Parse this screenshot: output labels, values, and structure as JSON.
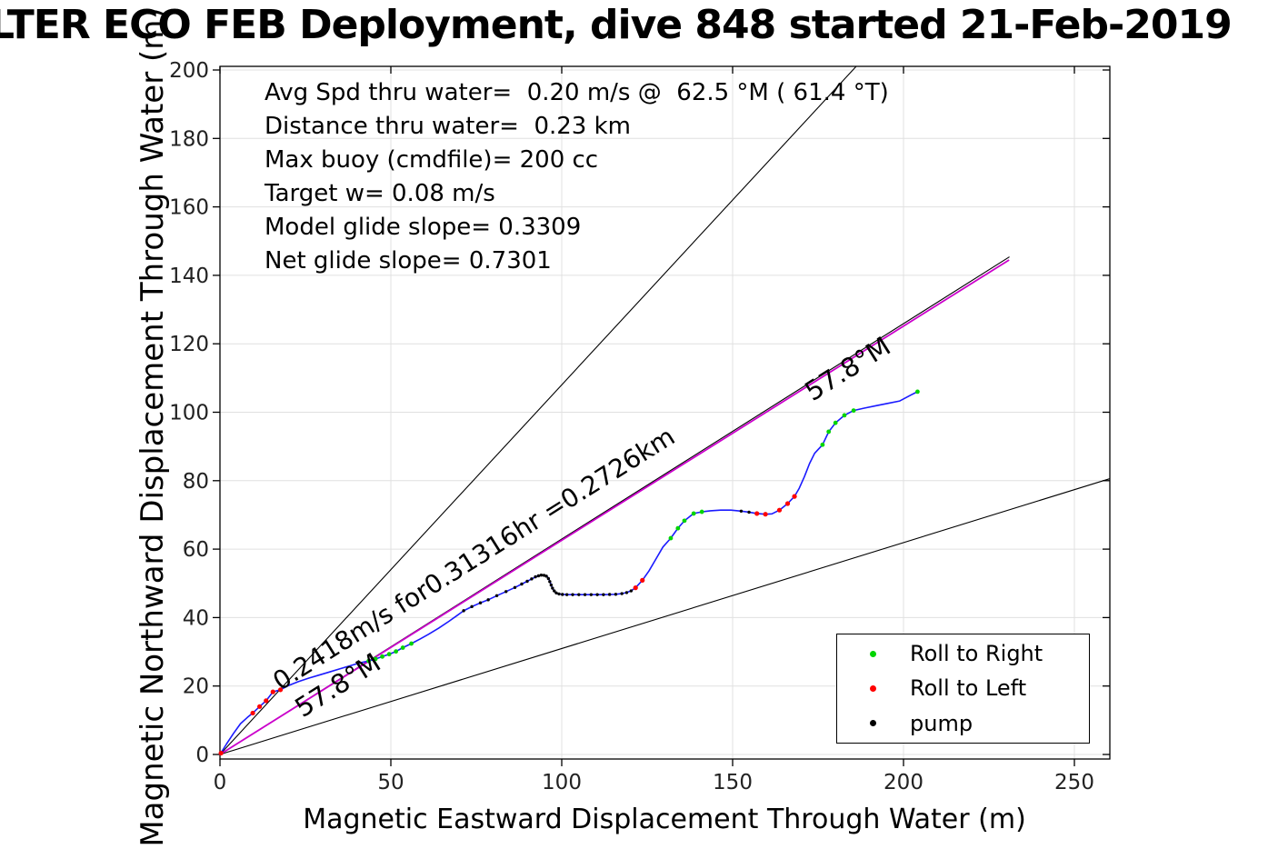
{
  "title": "LTER ECO FEB Deployment, dive 848 started 21-Feb-2019",
  "axes": {
    "xlabel": "Magnetic Eastward Displacement Through Water (m)",
    "ylabel": "Magnetic Northward Displacement Through Water (m)",
    "x_ticks": [
      0,
      50,
      100,
      150,
      200,
      250
    ],
    "y_ticks": [
      0,
      20,
      40,
      60,
      80,
      100,
      120,
      140,
      160,
      180,
      200
    ]
  },
  "stats": [
    "Avg Spd thru water=  0.20 m/s @  62.5 °M ( 61.4 °T)",
    "Distance thru water=  0.23 km",
    "Max buoy (cmdfile)= 200 cc",
    "Target w= 0.08 m/s",
    "Model glide slope= 0.3309",
    "Net glide slope= 0.7301"
  ],
  "annotations": {
    "speed_vector_label": "0.2418m/s for0.31316hr =0.2726km",
    "heading_label_1": "57.8°M",
    "heading_label_2": "57.8°M"
  },
  "legend": {
    "items": [
      {
        "label": "Roll to Right",
        "color": "#00d500"
      },
      {
        "label": "Roll to Left",
        "color": "#ff0000"
      },
      {
        "label": "pump",
        "color": "#000000"
      }
    ]
  },
  "colors": {
    "trajectory": "#1a1aff",
    "mean_vector": "#cc00cc",
    "reference_lines": "#000000",
    "grid": "#e0e0e0",
    "tick_label": "#222222"
  },
  "chart_data": {
    "type": "line",
    "title": "LTER ECO FEB Deployment, dive 848 started 21-Feb-2019",
    "xlabel": "Magnetic Eastward Displacement Through Water (m)",
    "ylabel": "Magnetic Northward Displacement Through Water (m)",
    "xlim": [
      0,
      260
    ],
    "ylim": [
      0,
      201
    ],
    "grid": true,
    "legend_position": "lower right",
    "trajectory": [
      [
        0,
        0
      ],
      [
        2,
        3.2
      ],
      [
        4,
        6.2
      ],
      [
        6,
        9
      ],
      [
        8,
        10.8
      ],
      [
        9.6,
        12.1
      ],
      [
        11.6,
        14
      ],
      [
        13.5,
        15.7
      ],
      [
        15.5,
        18.3
      ],
      [
        17.7,
        18.9
      ],
      [
        20,
        20.1
      ],
      [
        23,
        21.3
      ],
      [
        26,
        22.3
      ],
      [
        29,
        23.2
      ],
      [
        32,
        24.1
      ],
      [
        35,
        25
      ],
      [
        38,
        25.9
      ],
      [
        41,
        26.8
      ],
      [
        43.5,
        27.3
      ],
      [
        45.5,
        27.9
      ],
      [
        47.5,
        28.6
      ],
      [
        49.5,
        29.3
      ],
      [
        51.5,
        30.1
      ],
      [
        53.5,
        31.2
      ],
      [
        56,
        32.4
      ],
      [
        58.5,
        33.7
      ],
      [
        61,
        35.1
      ],
      [
        64,
        36.9
      ],
      [
        67,
        38.9
      ],
      [
        69.5,
        40.7
      ],
      [
        71.3,
        42
      ],
      [
        73.7,
        43.2
      ],
      [
        76.2,
        44.3
      ],
      [
        78.5,
        45.2
      ],
      [
        81,
        46.4
      ],
      [
        83.7,
        47.6
      ],
      [
        86.3,
        48.8
      ],
      [
        88.3,
        49.8
      ],
      [
        89.9,
        50.6
      ],
      [
        91.2,
        51.3
      ],
      [
        92.6,
        52
      ],
      [
        93.6,
        52.3
      ],
      [
        94.4,
        52.4
      ],
      [
        95.2,
        52.3
      ],
      [
        95.8,
        51.9
      ],
      [
        96.3,
        51.1
      ],
      [
        96.7,
        50.1
      ],
      [
        97.1,
        49
      ],
      [
        97.6,
        48
      ],
      [
        98.2,
        47.3
      ],
      [
        99,
        46.9
      ],
      [
        100,
        46.8
      ],
      [
        101.5,
        46.7
      ],
      [
        103.2,
        46.7
      ],
      [
        105,
        46.7
      ],
      [
        106.8,
        46.7
      ],
      [
        108.6,
        46.7
      ],
      [
        110.4,
        46.7
      ],
      [
        112.2,
        46.7
      ],
      [
        114,
        46.75
      ],
      [
        115.8,
        46.8
      ],
      [
        117.6,
        47
      ],
      [
        119,
        47.3
      ],
      [
        120.4,
        47.9
      ],
      [
        121.6,
        48.7
      ],
      [
        123.6,
        50.9
      ],
      [
        125.5,
        53.6
      ],
      [
        127.5,
        57
      ],
      [
        129.6,
        60.6
      ],
      [
        131.9,
        63.2
      ],
      [
        134,
        66.1
      ],
      [
        135.9,
        68.3
      ],
      [
        138.6,
        70.4
      ],
      [
        141,
        70.9
      ],
      [
        143.5,
        71.2
      ],
      [
        146.5,
        71.4
      ],
      [
        149.5,
        71.4
      ],
      [
        152.5,
        71.1
      ],
      [
        154.8,
        70.8
      ],
      [
        157.1,
        70.4
      ],
      [
        159.6,
        70.2
      ],
      [
        161.5,
        70.3
      ],
      [
        163.7,
        71.4
      ],
      [
        166.1,
        73.3
      ],
      [
        168.1,
        75.4
      ],
      [
        169.5,
        77.8
      ],
      [
        171,
        81.2
      ],
      [
        172.5,
        85
      ],
      [
        174,
        88
      ],
      [
        176.3,
        90.5
      ],
      [
        178.1,
        94.3
      ],
      [
        180.1,
        96.9
      ],
      [
        182.7,
        99.1
      ],
      [
        185.4,
        100.5
      ],
      [
        188.5,
        101.2
      ],
      [
        192,
        101.9
      ],
      [
        195.5,
        102.6
      ],
      [
        198.9,
        103.3
      ],
      [
        202.1,
        105
      ],
      [
        204.1,
        106
      ]
    ],
    "markers": {
      "roll_right": [
        [
          43.5,
          27.3
        ],
        [
          45.5,
          27.9
        ],
        [
          47.5,
          28.6
        ],
        [
          49.5,
          29.3
        ],
        [
          51.5,
          30.1
        ],
        [
          53.5,
          31.2
        ],
        [
          56,
          32.4
        ],
        [
          131.9,
          63.2
        ],
        [
          134,
          66.1
        ],
        [
          135.9,
          68.3
        ],
        [
          138.6,
          70.4
        ],
        [
          141,
          70.9
        ],
        [
          176.3,
          90.5
        ],
        [
          178.1,
          94.3
        ],
        [
          180.1,
          96.9
        ],
        [
          182.7,
          99.1
        ],
        [
          185.4,
          100.5
        ],
        [
          204.1,
          106
        ]
      ],
      "roll_left": [
        [
          0.3,
          0.4
        ],
        [
          9.6,
          12.1
        ],
        [
          11.6,
          14
        ],
        [
          13.5,
          15.7
        ],
        [
          15.5,
          18.3
        ],
        [
          17.7,
          18.9
        ],
        [
          121.6,
          48.7
        ],
        [
          123.6,
          50.9
        ],
        [
          157.1,
          70.4
        ],
        [
          159.6,
          70.2
        ],
        [
          163.7,
          71.4
        ],
        [
          166.1,
          73.3
        ],
        [
          168.1,
          75.4
        ]
      ],
      "pump": [
        [
          71.3,
          42
        ],
        [
          73.7,
          43.2
        ],
        [
          76.2,
          44.3
        ],
        [
          78.5,
          45.2
        ],
        [
          81,
          46.4
        ],
        [
          83.7,
          47.6
        ],
        [
          86.3,
          48.8
        ],
        [
          88.3,
          49.8
        ],
        [
          89.9,
          50.6
        ],
        [
          91.2,
          51.3
        ],
        [
          92.3,
          51.9
        ],
        [
          93.2,
          52.2
        ],
        [
          94,
          52.4
        ],
        [
          94.8,
          52.35
        ],
        [
          95.5,
          52.1
        ],
        [
          96.1,
          51.4
        ],
        [
          96.5,
          50.5
        ],
        [
          96.9,
          49.5
        ],
        [
          97.3,
          48.6
        ],
        [
          97.8,
          47.8
        ],
        [
          98.4,
          47.2
        ],
        [
          99.2,
          46.9
        ],
        [
          100.2,
          46.75
        ],
        [
          101.5,
          46.7
        ],
        [
          103.2,
          46.7
        ],
        [
          105,
          46.7
        ],
        [
          106.8,
          46.7
        ],
        [
          108.6,
          46.7
        ],
        [
          110.4,
          46.7
        ],
        [
          112.2,
          46.7
        ],
        [
          114,
          46.75
        ],
        [
          115.8,
          46.8
        ],
        [
          117.6,
          47
        ],
        [
          119,
          47.3
        ],
        [
          120.3,
          47.8
        ],
        [
          152.5,
          71.1
        ],
        [
          154.8,
          70.8
        ]
      ]
    },
    "reference_lines": [
      {
        "name": "heading-42-8",
        "from": [
          0,
          0
        ],
        "to": [
          186.1,
          201
        ]
      },
      {
        "name": "heading-57-8",
        "from": [
          0,
          0
        ],
        "to": [
          231,
          145.4
        ]
      },
      {
        "name": "heading-72-8",
        "from": [
          0,
          0
        ],
        "to": [
          260.4,
          80.6
        ]
      }
    ],
    "mean_displacement_vector": {
      "from": [
        0,
        0
      ],
      "to": [
        230.9,
        144.5
      ]
    }
  }
}
